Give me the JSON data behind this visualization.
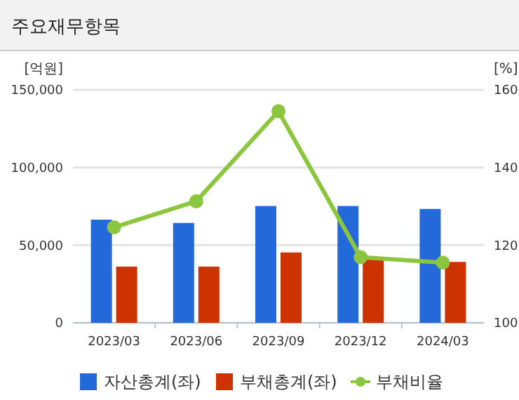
{
  "chart_data": {
    "type": "bar",
    "title": "주요재무항목",
    "ylabel": "[억원]",
    "y2label": "[%]",
    "categories": [
      "2023/03",
      "2023/06",
      "2023/09",
      "2023/12",
      "2024/03"
    ],
    "series": [
      {
        "name": "자산총계(좌)",
        "color": "#2369d9",
        "values": [
          66400,
          64300,
          75200,
          75200,
          73300
        ]
      },
      {
        "name": "부채총계(좌)",
        "color": "#cc3300",
        "values": [
          36200,
          36200,
          45300,
          40700,
          39200
        ]
      },
      {
        "name": "부채비율",
        "type": "line",
        "axis": "y2",
        "color": "#8cc63f",
        "marker": "circle",
        "values": [
          124.6,
          131.3,
          154.5,
          116.9,
          115.5
        ]
      }
    ],
    "ylim": [
      0,
      150000
    ],
    "yticks": [
      {
        "value": 0,
        "label": "0"
      },
      {
        "value": 50000,
        "label": "50,000"
      },
      {
        "value": 100000,
        "label": "100,000"
      },
      {
        "value": 150000,
        "label": "150,000"
      }
    ],
    "y2lim": [
      100,
      160
    ],
    "y2ticks": [
      100,
      120,
      140,
      160
    ],
    "grid": "y",
    "legend": "bottom"
  }
}
